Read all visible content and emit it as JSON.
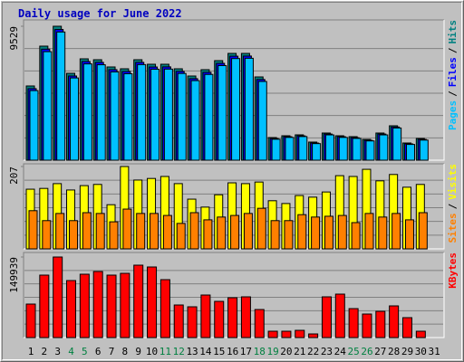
{
  "title": "Daily usage for June 2022",
  "chart_data": [
    {
      "type": "bar",
      "categories": [
        "1",
        "2",
        "3",
        "4",
        "5",
        "6",
        "7",
        "8",
        "9",
        "10",
        "11",
        "12",
        "13",
        "14",
        "15",
        "16",
        "17",
        "18",
        "19",
        "20",
        "21",
        "22",
        "23",
        "24",
        "25",
        "26",
        "27",
        "28",
        "29",
        "30",
        "31"
      ],
      "legend_separator": "/",
      "series": [
        {
          "name": "Hits",
          "color": "#008080",
          "values": [
            5280,
            8113,
            9529,
            6181,
            7211,
            7147,
            6632,
            6503,
            7147,
            6825,
            6825,
            6503,
            5988,
            6439,
            7082,
            7597,
            7597,
            5923,
            1610,
            1738,
            1803,
            1288,
            1932,
            1738,
            1674,
            1481,
            1932,
            2447,
            1223,
            1545,
            null
          ]
        },
        {
          "name": "Files",
          "color": "#0000FF",
          "values": [
            5090,
            7900,
            9300,
            5990,
            7020,
            6960,
            6440,
            6310,
            6960,
            6630,
            6640,
            6320,
            5800,
            6250,
            6890,
            7400,
            7410,
            5740,
            1540,
            1670,
            1730,
            1220,
            1860,
            1670,
            1600,
            1410,
            1860,
            2360,
            1160,
            1480,
            null
          ]
        },
        {
          "name": "Pages",
          "color": "#00C0FF",
          "values": [
            4950,
            7720,
            9120,
            5850,
            6850,
            6790,
            6280,
            6150,
            6800,
            6470,
            6480,
            6170,
            5660,
            6100,
            6730,
            7230,
            7250,
            5600,
            1490,
            1620,
            1680,
            1180,
            1800,
            1620,
            1550,
            1370,
            1800,
            2290,
            1120,
            1430,
            null
          ]
        }
      ],
      "ylim": [
        0,
        9529
      ],
      "yticks": [
        9529
      ]
    },
    {
      "type": "bar",
      "legend_separator": "/",
      "series": [
        {
          "name": "Visits",
          "color": "#FFFF00",
          "values": [
            150,
            152,
            164,
            148,
            159,
            162,
            111,
            207,
            173,
            177,
            182,
            164,
            125,
            105,
            136,
            166,
            164,
            168,
            121,
            114,
            134,
            130,
            143,
            184,
            182,
            200,
            171,
            187,
            155,
            162,
            null
          ]
        },
        {
          "name": "Sites",
          "color": "#FF8000",
          "values": [
            96,
            71,
            89,
            71,
            91,
            89,
            68,
            100,
            89,
            89,
            84,
            64,
            91,
            73,
            80,
            84,
            89,
            102,
            71,
            71,
            86,
            80,
            82,
            84,
            66,
            89,
            80,
            89,
            73,
            91,
            null
          ]
        }
      ],
      "ylim": [
        0,
        207
      ],
      "yticks": [
        207
      ]
    },
    {
      "type": "bar",
      "categories": [
        "1",
        "2",
        "3",
        "4",
        "5",
        "6",
        "7",
        "8",
        "9",
        "10",
        "11",
        "12",
        "13",
        "14",
        "15",
        "16",
        "17",
        "18",
        "19",
        "20",
        "21",
        "22",
        "23",
        "24",
        "25",
        "26",
        "27",
        "28",
        "29",
        "30",
        "31"
      ],
      "x_label_colors": [
        "#000000",
        "#000000",
        "#000000",
        "#008040",
        "#008040",
        "#000000",
        "#000000",
        "#000000",
        "#000000",
        "#000000",
        "#008040",
        "#008040",
        "#000000",
        "#000000",
        "#000000",
        "#000000",
        "#000000",
        "#008040",
        "#008040",
        "#000000",
        "#000000",
        "#000000",
        "#000000",
        "#000000",
        "#008040",
        "#008040",
        "#000000",
        "#000000",
        "#000000",
        "#000000",
        "#000000"
      ],
      "series": [
        {
          "name": "KBytes",
          "color": "#FF0000",
          "values": [
            62335,
            116244,
            149939,
            106136,
            117929,
            122983,
            116244,
            119614,
            134776,
            131407,
            107820,
            60649,
            57280,
            79180,
            67388,
            74127,
            75811,
            52225,
            11793,
            11793,
            13477,
            6739,
            75811,
            80865,
            53910,
            43802,
            48856,
            58965,
            37064,
            11793,
            null
          ]
        }
      ],
      "ylim": [
        0,
        149939
      ],
      "yticks": [
        149939
      ]
    }
  ]
}
